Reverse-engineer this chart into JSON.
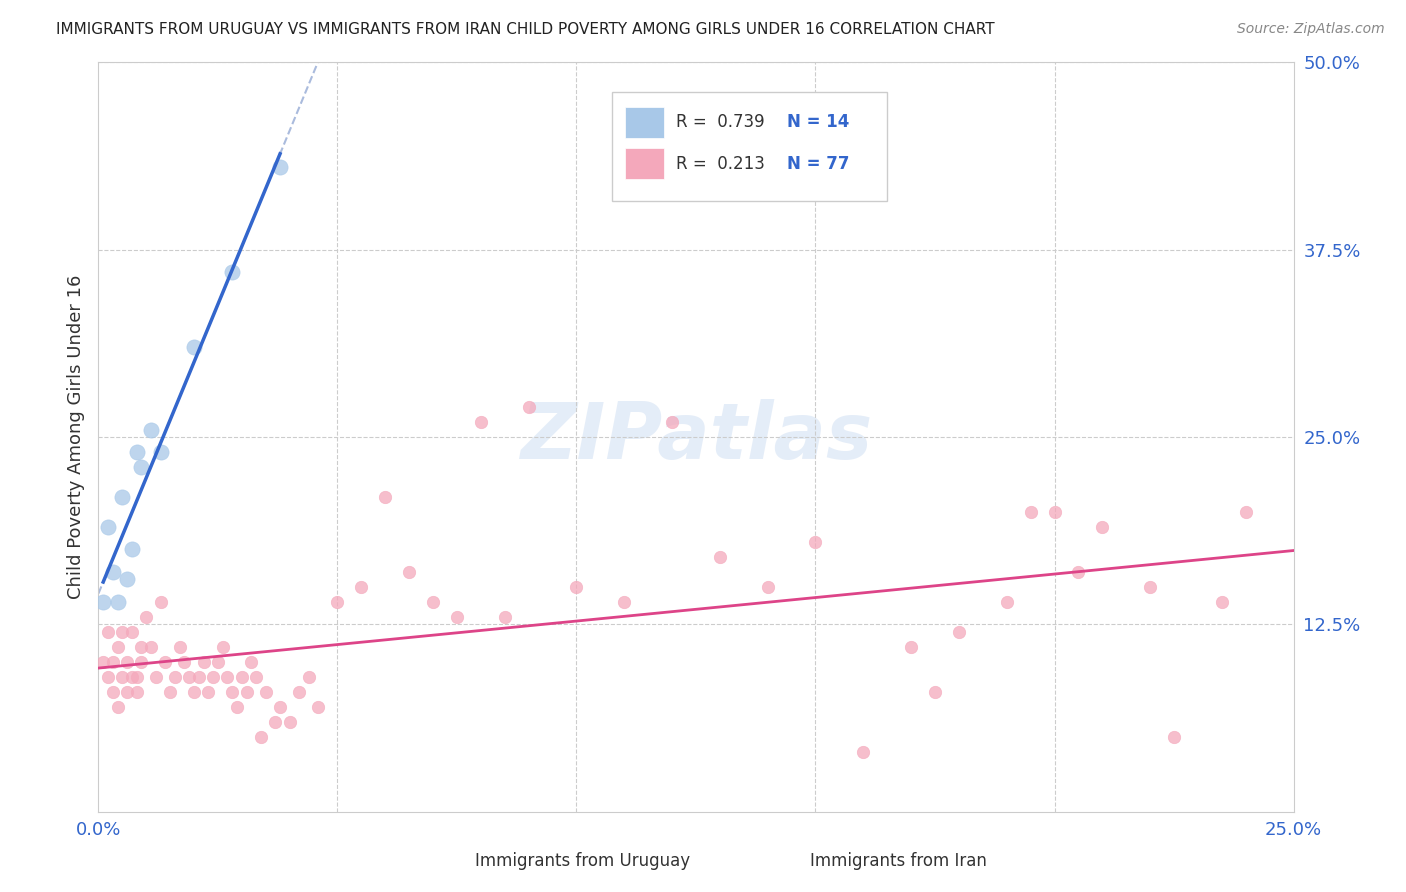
{
  "title": "IMMIGRANTS FROM URUGUAY VS IMMIGRANTS FROM IRAN CHILD POVERTY AMONG GIRLS UNDER 16 CORRELATION CHART",
  "source": "Source: ZipAtlas.com",
  "ylabel": "Child Poverty Among Girls Under 16",
  "xlim": [
    0.0,
    0.25
  ],
  "ylim": [
    0.0,
    0.5
  ],
  "xtick_positions": [
    0.0,
    0.05,
    0.1,
    0.15,
    0.2,
    0.25
  ],
  "xtick_labels": [
    "0.0%",
    "",
    "",
    "",
    "",
    "25.0%"
  ],
  "ytick_positions": [
    0.0,
    0.125,
    0.25,
    0.375,
    0.5
  ],
  "ytick_labels_right": [
    "",
    "12.5%",
    "25.0%",
    "37.5%",
    "50.0%"
  ],
  "background_color": "#ffffff",
  "watermark": "ZIPatlas",
  "uruguay_color": "#a8c8e8",
  "iran_color": "#f4a8bb",
  "uruguay_line_color": "#3366cc",
  "iran_line_color": "#dd4488",
  "uruguay_dash_color": "#aabbdd",
  "legend_text_color": "#333333",
  "legend_RN_color": "#3366cc",
  "uruguay_R": 0.739,
  "uruguay_N": 14,
  "iran_R": 0.213,
  "iran_N": 77,
  "uruguay_scatter_x": [
    0.001,
    0.002,
    0.003,
    0.004,
    0.005,
    0.006,
    0.007,
    0.008,
    0.009,
    0.011,
    0.013,
    0.02,
    0.028,
    0.038
  ],
  "uruguay_scatter_y": [
    0.14,
    0.19,
    0.16,
    0.14,
    0.21,
    0.155,
    0.175,
    0.24,
    0.23,
    0.255,
    0.24,
    0.31,
    0.36,
    0.43
  ],
  "iran_scatter_x": [
    0.001,
    0.002,
    0.002,
    0.003,
    0.003,
    0.004,
    0.004,
    0.005,
    0.005,
    0.006,
    0.006,
    0.007,
    0.007,
    0.008,
    0.008,
    0.009,
    0.009,
    0.01,
    0.011,
    0.012,
    0.013,
    0.014,
    0.015,
    0.016,
    0.017,
    0.018,
    0.019,
    0.02,
    0.021,
    0.022,
    0.023,
    0.024,
    0.025,
    0.026,
    0.027,
    0.028,
    0.029,
    0.03,
    0.031,
    0.032,
    0.033,
    0.034,
    0.035,
    0.037,
    0.038,
    0.04,
    0.042,
    0.044,
    0.046,
    0.05,
    0.055,
    0.06,
    0.065,
    0.07,
    0.075,
    0.08,
    0.085,
    0.09,
    0.1,
    0.11,
    0.12,
    0.13,
    0.14,
    0.15,
    0.16,
    0.17,
    0.18,
    0.19,
    0.2,
    0.205,
    0.21,
    0.22,
    0.225,
    0.235,
    0.24,
    0.195,
    0.175
  ],
  "iran_scatter_y": [
    0.1,
    0.09,
    0.12,
    0.1,
    0.08,
    0.11,
    0.07,
    0.09,
    0.12,
    0.1,
    0.08,
    0.09,
    0.12,
    0.09,
    0.08,
    0.11,
    0.1,
    0.13,
    0.11,
    0.09,
    0.14,
    0.1,
    0.08,
    0.09,
    0.11,
    0.1,
    0.09,
    0.08,
    0.09,
    0.1,
    0.08,
    0.09,
    0.1,
    0.11,
    0.09,
    0.08,
    0.07,
    0.09,
    0.08,
    0.1,
    0.09,
    0.05,
    0.08,
    0.06,
    0.07,
    0.06,
    0.08,
    0.09,
    0.07,
    0.14,
    0.15,
    0.21,
    0.16,
    0.14,
    0.13,
    0.26,
    0.13,
    0.27,
    0.15,
    0.14,
    0.26,
    0.17,
    0.15,
    0.18,
    0.04,
    0.11,
    0.12,
    0.14,
    0.2,
    0.16,
    0.19,
    0.15,
    0.05,
    0.14,
    0.2,
    0.2,
    0.08
  ]
}
